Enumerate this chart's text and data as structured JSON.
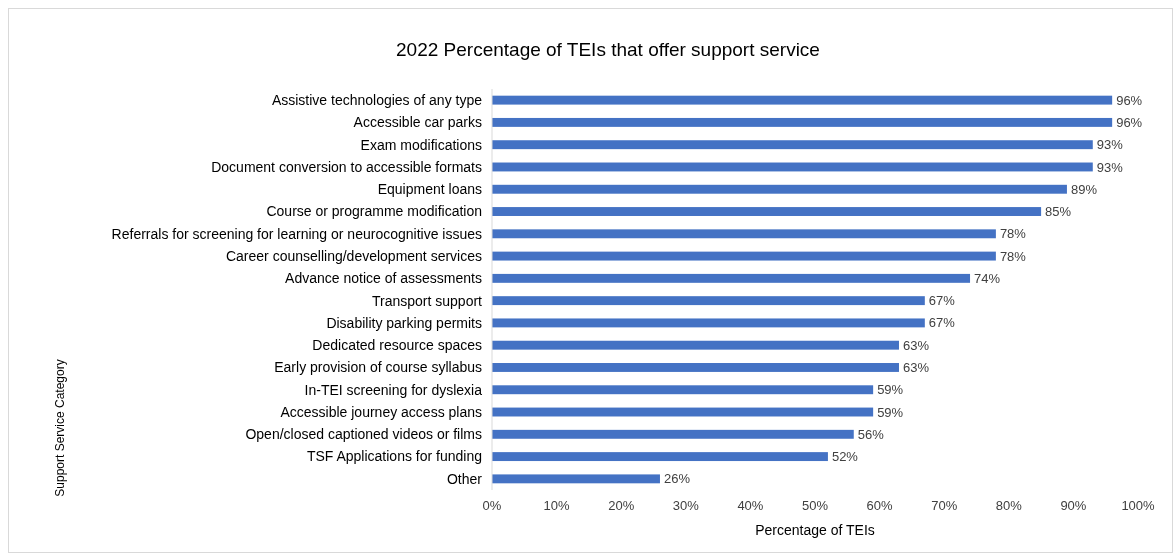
{
  "chart_data": {
    "type": "bar",
    "orientation": "horizontal",
    "title": "2022 Percentage of TEIs that offer support service",
    "xlabel": "Percentage of TEIs",
    "ylabel": "Support Service Category",
    "categories": [
      "Assistive technologies of any type",
      "Accessible car parks",
      "Exam modifications",
      "Document conversion to accessible formats",
      "Equipment loans",
      "Course or programme modification",
      "Referrals for screening for learning or neurocognitive issues",
      "Career counselling/development services",
      "Advance notice of assessments",
      "Transport support",
      "Disability parking permits",
      "Dedicated resource spaces",
      "Early provision of course syllabus",
      "In-TEI screening for dyslexia",
      "Accessible journey access plans",
      "Open/closed captioned videos or films",
      "TSF Applications for funding",
      "Other"
    ],
    "values": [
      96,
      96,
      93,
      93,
      89,
      85,
      78,
      78,
      74,
      67,
      67,
      63,
      63,
      59,
      59,
      56,
      52,
      26
    ],
    "value_labels": [
      "96%",
      "96%",
      "93%",
      "93%",
      "89%",
      "85%",
      "78%",
      "78%",
      "74%",
      "67%",
      "67%",
      "63%",
      "63%",
      "59%",
      "59%",
      "56%",
      "52%",
      "26%"
    ],
    "color": "#4472c4",
    "xlim": [
      0,
      100
    ],
    "xticks": [
      {
        "value": 0,
        "label": "0%"
      },
      {
        "value": 10,
        "label": "10%"
      },
      {
        "value": 20,
        "label": "20%"
      },
      {
        "value": 30,
        "label": "30%"
      },
      {
        "value": 40,
        "label": "40%"
      },
      {
        "value": 50,
        "label": "50%"
      },
      {
        "value": 60,
        "label": "60%"
      },
      {
        "value": 70,
        "label": "70%"
      },
      {
        "value": 80,
        "label": "80%"
      },
      {
        "value": 90,
        "label": "90%"
      },
      {
        "value": 100,
        "label": "100%"
      }
    ],
    "grid": false
  }
}
